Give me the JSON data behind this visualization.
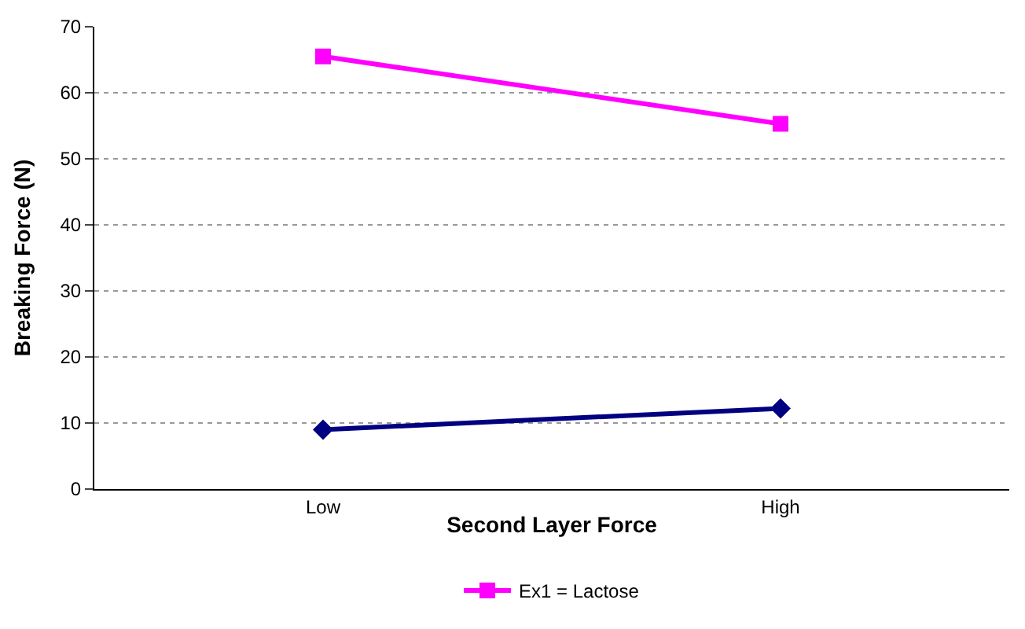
{
  "chart_data": {
    "type": "line",
    "xlabel": "Second Layer Force",
    "ylabel": "Breaking Force (N)",
    "categories": [
      "Low",
      "High"
    ],
    "series": [
      {
        "color": "#000080",
        "marker": "diamond",
        "values": [
          9,
          12.2
        ]
      },
      {
        "name": "Ex1 = Lactose",
        "color": "#ff00ff",
        "marker": "square",
        "values": [
          65.5,
          55.3
        ]
      }
    ],
    "ylim": [
      0,
      70
    ],
    "yticks": [
      0,
      10,
      20,
      30,
      40,
      50,
      60,
      70
    ],
    "grid": "y",
    "legend": "bottom"
  }
}
